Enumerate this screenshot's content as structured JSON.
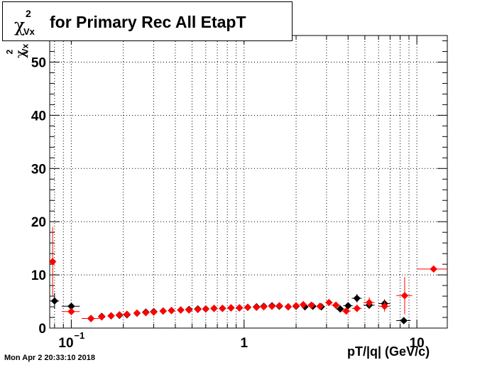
{
  "title": {
    "symbol": "χ",
    "superscript": "2",
    "subscript": "Vx",
    "text": "for Primary Rec All EtapT"
  },
  "footer": "Mon Apr  2 20:33:10 2018",
  "colors": {
    "series_black": "#000000",
    "series_red": "#ff0000",
    "grid": "#000000"
  },
  "chart_data": {
    "type": "scatter",
    "title": "χ²Vx for Primary Rec All EtapT",
    "xlabel": "pT/|q| (GeV/c)",
    "ylabel": "χ²Vx",
    "xscale": "log",
    "xlim": [
      0.075,
      15
    ],
    "ylim": [
      0,
      55
    ],
    "grid": true,
    "x_tick_labels": [
      {
        "value": 0.1,
        "base": "10",
        "exp": "−1"
      },
      {
        "value": 1,
        "text": "1"
      },
      {
        "value": 10,
        "text": "10"
      }
    ],
    "y_tick_labels": [
      "0",
      "10",
      "20",
      "30",
      "40",
      "50"
    ],
    "series": [
      {
        "color": "#000000",
        "points": [
          {
            "x": 0.08,
            "y": 5.1,
            "xerr": 0.005,
            "yerr": 1.5
          },
          {
            "x": 0.1,
            "y": 4.1,
            "xerr": 0.012,
            "yerr": 0.6
          },
          {
            "x": 0.13,
            "y": 1.8,
            "xerr": 0.015,
            "yerr": 0.3
          },
          {
            "x": 0.15,
            "y": 2.2
          },
          {
            "x": 0.17,
            "y": 2.3
          },
          {
            "x": 0.19,
            "y": 2.4
          },
          {
            "x": 0.21,
            "y": 2.5
          },
          {
            "x": 0.24,
            "y": 2.8
          },
          {
            "x": 0.27,
            "y": 3.0
          },
          {
            "x": 0.3,
            "y": 3.1
          },
          {
            "x": 0.34,
            "y": 3.2
          },
          {
            "x": 0.38,
            "y": 3.3
          },
          {
            "x": 0.43,
            "y": 3.4
          },
          {
            "x": 0.48,
            "y": 3.5
          },
          {
            "x": 0.54,
            "y": 3.6
          },
          {
            "x": 0.6,
            "y": 3.6
          },
          {
            "x": 0.67,
            "y": 3.7
          },
          {
            "x": 0.75,
            "y": 3.7
          },
          {
            "x": 0.84,
            "y": 3.8
          },
          {
            "x": 0.94,
            "y": 3.8
          },
          {
            "x": 1.05,
            "y": 3.9
          },
          {
            "x": 1.18,
            "y": 4.0
          },
          {
            "x": 1.3,
            "y": 4.1
          },
          {
            "x": 1.45,
            "y": 4.2
          },
          {
            "x": 1.6,
            "y": 4.1
          },
          {
            "x": 1.8,
            "y": 4.0
          },
          {
            "x": 2.0,
            "y": 4.1
          },
          {
            "x": 2.25,
            "y": 4.0
          },
          {
            "x": 2.5,
            "y": 4.1
          },
          {
            "x": 2.8,
            "y": 4.0
          },
          {
            "x": 3.6,
            "y": 3.6,
            "xerr": 0.2,
            "yerr": 0.5
          },
          {
            "x": 4.0,
            "y": 4.2,
            "xerr": 0.25,
            "yerr": 0.6
          },
          {
            "x": 4.5,
            "y": 5.6,
            "xerr": 0.3,
            "yerr": 0.8
          },
          {
            "x": 5.3,
            "y": 4.3,
            "xerr": 0.4,
            "yerr": 0.7
          },
          {
            "x": 6.5,
            "y": 4.6,
            "xerr": 0.5,
            "yerr": 0.8
          },
          {
            "x": 8.4,
            "y": 1.4,
            "xerr": 0.8,
            "yerr": 0.3
          }
        ]
      },
      {
        "color": "#ff0000",
        "points": [
          {
            "x": 0.078,
            "y": 12.5,
            "xerr": 0.003,
            "yerr": 6.5
          },
          {
            "x": 0.1,
            "y": 3.1,
            "xerr": 0.012,
            "yerr": 0.6
          },
          {
            "x": 0.13,
            "y": 1.8,
            "xerr": 0.015,
            "yerr": 0.3
          },
          {
            "x": 0.15,
            "y": 2.1
          },
          {
            "x": 0.17,
            "y": 2.3
          },
          {
            "x": 0.19,
            "y": 2.5
          },
          {
            "x": 0.21,
            "y": 2.6
          },
          {
            "x": 0.24,
            "y": 2.8
          },
          {
            "x": 0.27,
            "y": 2.9
          },
          {
            "x": 0.3,
            "y": 3.0
          },
          {
            "x": 0.34,
            "y": 3.2
          },
          {
            "x": 0.38,
            "y": 3.3
          },
          {
            "x": 0.43,
            "y": 3.4
          },
          {
            "x": 0.48,
            "y": 3.4
          },
          {
            "x": 0.54,
            "y": 3.5
          },
          {
            "x": 0.6,
            "y": 3.6
          },
          {
            "x": 0.67,
            "y": 3.7
          },
          {
            "x": 0.75,
            "y": 3.7
          },
          {
            "x": 0.84,
            "y": 3.8
          },
          {
            "x": 0.94,
            "y": 3.8
          },
          {
            "x": 1.05,
            "y": 3.9
          },
          {
            "x": 1.18,
            "y": 3.9
          },
          {
            "x": 1.3,
            "y": 4.0
          },
          {
            "x": 1.45,
            "y": 4.1
          },
          {
            "x": 1.6,
            "y": 4.2
          },
          {
            "x": 1.8,
            "y": 4.0
          },
          {
            "x": 2.0,
            "y": 4.2
          },
          {
            "x": 2.2,
            "y": 4.4
          },
          {
            "x": 2.45,
            "y": 4.3
          },
          {
            "x": 2.75,
            "y": 4.1
          },
          {
            "x": 3.1,
            "y": 4.8,
            "xerr": 0.15,
            "yerr": 0.5
          },
          {
            "x": 3.4,
            "y": 4.3,
            "xerr": 0.2,
            "yerr": 0.5
          },
          {
            "x": 3.9,
            "y": 3.2,
            "xerr": 0.25,
            "yerr": 0.6
          },
          {
            "x": 4.5,
            "y": 3.7,
            "xerr": 0.3,
            "yerr": 0.7
          },
          {
            "x": 5.3,
            "y": 4.8,
            "xerr": 0.4,
            "yerr": 1.0
          },
          {
            "x": 6.5,
            "y": 4.1,
            "xerr": 0.5,
            "yerr": 1.0
          },
          {
            "x": 8.5,
            "y": 6.1,
            "xerr": 0.9,
            "yerr": 3.5
          },
          {
            "x": 12.5,
            "y": 11.1,
            "xerr": 2.5,
            "yerr": 0.2
          }
        ]
      }
    ]
  }
}
